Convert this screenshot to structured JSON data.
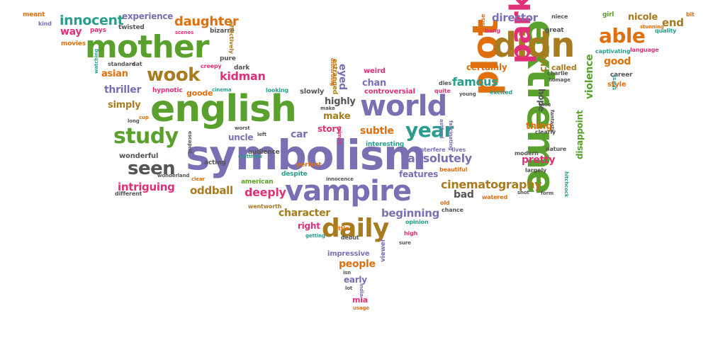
{
  "palette": {
    "purple": "#7b6fb4",
    "green": "#5aa02c",
    "orange": "#e0700e",
    "brown": "#a87b1f",
    "pink": "#e0307a",
    "teal": "#2a9d8f",
    "gray": "#555555"
  },
  "words": [
    {
      "t": "symbolism",
      "c": "purple"
    },
    {
      "t": "english",
      "c": "green"
    },
    {
      "t": "extreme",
      "c": "green"
    },
    {
      "t": "vampire",
      "c": "purple"
    },
    {
      "t": "mother",
      "c": "green"
    },
    {
      "t": "plot",
      "c": "orange"
    },
    {
      "t": "world",
      "c": "purple"
    },
    {
      "t": "daily",
      "c": "brown"
    },
    {
      "t": "didn",
      "c": "brown"
    },
    {
      "t": "park",
      "c": "pink"
    },
    {
      "t": "study",
      "c": "green"
    },
    {
      "t": "year",
      "c": "teal"
    },
    {
      "t": "seen",
      "c": "gray"
    },
    {
      "t": "able",
      "c": "orange"
    },
    {
      "t": "wook",
      "c": "brown"
    },
    {
      "t": "cinematography",
      "c": "brown"
    },
    {
      "t": "innocent",
      "c": "teal"
    },
    {
      "t": "daughter",
      "c": "orange"
    },
    {
      "t": "absolutely",
      "c": "purple"
    },
    {
      "t": "intriguing",
      "c": "pink"
    },
    {
      "t": "oddball",
      "c": "brown"
    },
    {
      "t": "deeply",
      "c": "pink"
    },
    {
      "t": "kidman",
      "c": "pink"
    },
    {
      "t": "beginning",
      "c": "purple"
    },
    {
      "t": "character",
      "c": "brown"
    },
    {
      "t": "famous",
      "c": "teal"
    },
    {
      "t": "subtle",
      "c": "orange"
    },
    {
      "t": "pretty",
      "c": "pink"
    },
    {
      "t": "violence",
      "c": "green"
    },
    {
      "t": "disappoint",
      "c": "green"
    },
    {
      "t": "thriller",
      "c": "purple"
    },
    {
      "t": "director",
      "c": "purple"
    },
    {
      "t": "way",
      "c": "pink"
    },
    {
      "t": "asian",
      "c": "orange"
    },
    {
      "t": "simply",
      "c": "brown"
    },
    {
      "t": "people",
      "c": "orange"
    },
    {
      "t": "make",
      "c": "brown"
    },
    {
      "t": "highly",
      "c": "gray"
    },
    {
      "t": "car",
      "c": "purple"
    },
    {
      "t": "uncle",
      "c": "purple"
    },
    {
      "t": "bad",
      "c": "gray"
    },
    {
      "t": "end",
      "c": "brown"
    },
    {
      "t": "nicole",
      "c": "brown"
    },
    {
      "t": "good",
      "c": "orange"
    },
    {
      "t": "experience",
      "c": "purple"
    },
    {
      "t": "story",
      "c": "pink"
    },
    {
      "t": "features",
      "c": "purple"
    },
    {
      "t": "right",
      "c": "pink"
    },
    {
      "t": "early",
      "c": "purple"
    },
    {
      "t": "eyed",
      "c": "purple"
    },
    {
      "t": "chan",
      "c": "purple"
    },
    {
      "t": "cut",
      "c": "brown"
    },
    {
      "t": "hope",
      "c": "gray"
    },
    {
      "t": "thing",
      "c": "orange"
    },
    {
      "t": "certainly",
      "c": "orange"
    },
    {
      "t": "called",
      "c": "brown"
    },
    {
      "t": "goode",
      "c": "orange"
    },
    {
      "t": "wonderful",
      "c": "gray"
    },
    {
      "t": "mia",
      "c": "pink"
    },
    {
      "t": "weird",
      "c": "pink"
    },
    {
      "t": "controversial",
      "c": "pink"
    },
    {
      "t": "impressive",
      "c": "purple"
    },
    {
      "t": "slowly",
      "c": "gray"
    },
    {
      "t": "career",
      "c": "gray"
    },
    {
      "t": "style",
      "c": "orange"
    },
    {
      "t": "viewer",
      "c": "purple"
    },
    {
      "t": "movies",
      "c": "orange"
    },
    {
      "t": "twisted",
      "c": "gray"
    },
    {
      "t": "pays",
      "c": "pink"
    },
    {
      "t": "bizarre",
      "c": "gray"
    },
    {
      "t": "pure",
      "c": "gray"
    },
    {
      "t": "dark",
      "c": "gray"
    },
    {
      "t": "creepy",
      "c": "pink"
    },
    {
      "t": "effectively",
      "c": "brown"
    },
    {
      "t": "hypnotic",
      "c": "pink"
    },
    {
      "t": "looking",
      "c": "teal"
    },
    {
      "t": "acting",
      "c": "gray"
    },
    {
      "t": "audience",
      "c": "gray"
    },
    {
      "t": "wentworth",
      "c": "brown"
    },
    {
      "t": "american",
      "c": "green"
    },
    {
      "t": "despite",
      "c": "teal"
    },
    {
      "t": "perfect",
      "c": "orange"
    },
    {
      "t": "little",
      "c": "orange"
    },
    {
      "t": "debut",
      "c": "gray"
    },
    {
      "t": "interesting",
      "c": "teal"
    },
    {
      "t": "interfere",
      "c": "purple"
    },
    {
      "t": "lives",
      "c": "purple"
    },
    {
      "t": "beautiful",
      "c": "orange"
    },
    {
      "t": "chance",
      "c": "gray"
    },
    {
      "t": "opinion",
      "c": "teal"
    },
    {
      "t": "high",
      "c": "pink"
    },
    {
      "t": "old",
      "c": "orange"
    },
    {
      "t": "watered",
      "c": "orange"
    },
    {
      "t": "shot",
      "c": "gray"
    },
    {
      "t": "form",
      "c": "gray"
    },
    {
      "t": "modern",
      "c": "gray"
    },
    {
      "t": "largely",
      "c": "gray"
    },
    {
      "t": "clearly",
      "c": "gray"
    },
    {
      "t": "nature",
      "c": "gray"
    },
    {
      "t": "great",
      "c": "gray"
    },
    {
      "t": "niece",
      "c": "gray"
    },
    {
      "t": "girl",
      "c": "green"
    },
    {
      "t": "bit",
      "c": "orange"
    },
    {
      "t": "quality",
      "c": "teal"
    },
    {
      "t": "stunning",
      "c": "orange"
    },
    {
      "t": "language",
      "c": "pink"
    },
    {
      "t": "captivating",
      "c": "teal"
    },
    {
      "t": "charlie",
      "c": "gray"
    },
    {
      "t": "homage",
      "c": "gray"
    },
    {
      "t": "excited",
      "c": "teal"
    },
    {
      "t": "young",
      "c": "gray"
    },
    {
      "t": "quite",
      "c": "pink"
    },
    {
      "t": "dies",
      "c": "gray"
    },
    {
      "t": "bang",
      "c": "pink"
    },
    {
      "t": "sense",
      "c": "orange"
    },
    {
      "t": "meant",
      "c": "orange"
    },
    {
      "t": "kind",
      "c": "purple"
    },
    {
      "t": "standard",
      "c": "gray"
    },
    {
      "t": "sat",
      "c": "gray"
    },
    {
      "t": "cinema",
      "c": "teal"
    },
    {
      "t": "long",
      "c": "gray"
    },
    {
      "t": "cup",
      "c": "orange"
    },
    {
      "t": "india",
      "c": "purple"
    },
    {
      "t": "usage",
      "c": "orange"
    },
    {
      "t": "lot",
      "c": "gray"
    },
    {
      "t": "isn",
      "c": "gray"
    },
    {
      "t": "innocence",
      "c": "gray"
    },
    {
      "t": "getting",
      "c": "teal"
    },
    {
      "t": "different",
      "c": "gray"
    },
    {
      "t": "wonderland",
      "c": "gray"
    },
    {
      "t": "matthew",
      "c": "teal"
    },
    {
      "t": "left",
      "c": "gray"
    },
    {
      "t": "worst",
      "c": "gray"
    },
    {
      "t": "clear",
      "c": "orange"
    },
    {
      "t": "thirst",
      "c": "teal"
    },
    {
      "t": "watching",
      "c": "teal"
    },
    {
      "t": "estranged",
      "c": "brown"
    },
    {
      "t": "disturbing",
      "c": "orange"
    },
    {
      "t": "scenes",
      "c": "pink"
    },
    {
      "t": "fascinating",
      "c": "purple"
    },
    {
      "t": "astford",
      "c": "purple"
    },
    {
      "t": "fantastic",
      "c": "gray"
    },
    {
      "t": "hitchcock",
      "c": "teal"
    },
    {
      "t": "crimes",
      "c": "pink"
    },
    {
      "t": "time",
      "c": "gray"
    },
    {
      "t": "escapist",
      "c": "gray"
    },
    {
      "t": "sure",
      "c": "gray"
    },
    {
      "t": "make",
      "c": "gray"
    }
  ]
}
